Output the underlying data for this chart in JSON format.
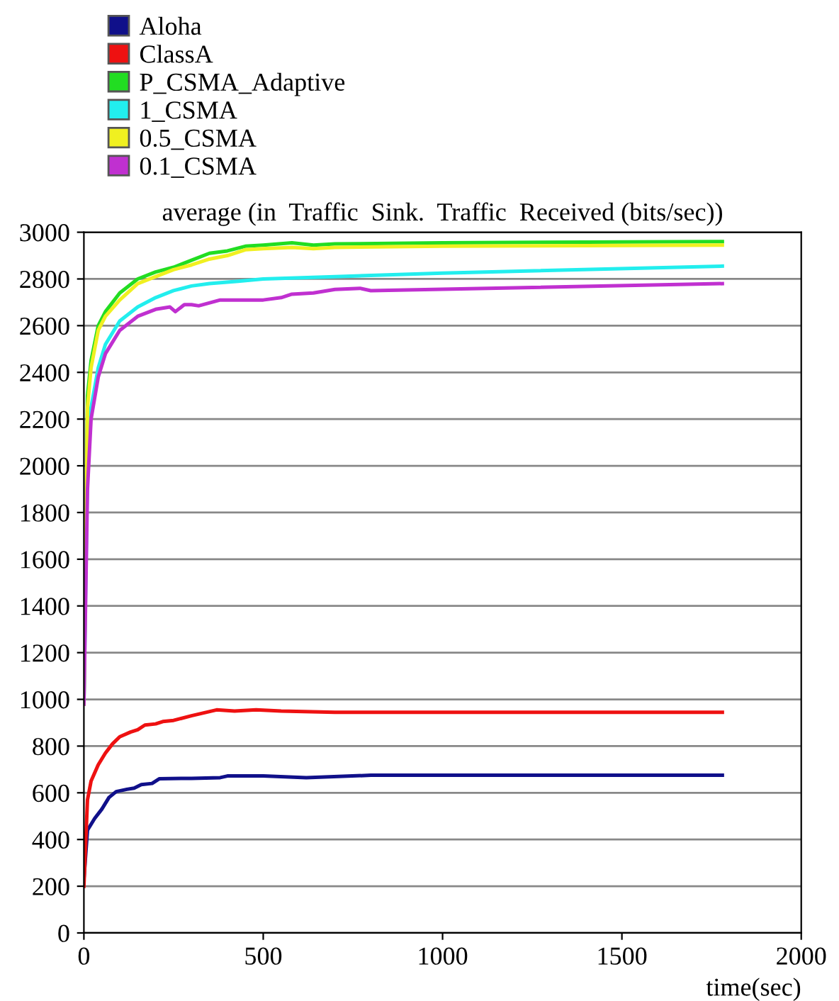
{
  "chart_data": {
    "type": "line",
    "title": "average (in  Traffic  Sink.  Traffic  Received (bits/sec))",
    "xlabel": "time(sec)",
    "xlim": [
      0,
      2000
    ],
    "xticks": [
      0,
      500,
      1000,
      1500,
      2000
    ],
    "ylim": [
      0,
      3000
    ],
    "yticks": [
      0,
      200,
      400,
      600,
      800,
      1000,
      1200,
      1400,
      1600,
      1800,
      2000,
      2200,
      2400,
      2600,
      2800,
      3000
    ],
    "grid": "y",
    "legend": "top left",
    "marker": "none",
    "line_style": "solid",
    "series": [
      {
        "name": "Aloha",
        "color": "#10108a",
        "x": [
          0,
          10,
          30,
          50,
          70,
          90,
          120,
          140,
          160,
          190,
          210,
          300,
          380,
          400,
          500,
          620,
          800,
          1780
        ],
        "values": [
          230,
          440,
          490,
          530,
          580,
          605,
          615,
          620,
          635,
          640,
          660,
          662,
          665,
          672,
          672,
          665,
          675,
          675
        ]
      },
      {
        "name": "ClassA",
        "color": "#ee1111",
        "x": [
          0,
          10,
          20,
          40,
          60,
          80,
          100,
          130,
          150,
          170,
          200,
          220,
          250,
          300,
          370,
          420,
          480,
          550,
          700,
          900,
          1780
        ],
        "values": [
          200,
          570,
          650,
          720,
          770,
          810,
          840,
          860,
          870,
          890,
          895,
          905,
          910,
          930,
          955,
          950,
          955,
          950,
          945,
          945,
          945
        ]
      },
      {
        "name": "P_CSMA_Adaptive",
        "color": "#22dd22",
        "x": [
          0,
          10,
          20,
          40,
          60,
          100,
          150,
          200,
          250,
          300,
          350,
          400,
          450,
          500,
          580,
          640,
          700,
          1000,
          1780
        ],
        "values": [
          980,
          2300,
          2450,
          2600,
          2660,
          2740,
          2800,
          2830,
          2850,
          2880,
          2910,
          2920,
          2940,
          2945,
          2955,
          2945,
          2950,
          2955,
          2960
        ]
      },
      {
        "name": "1_CSMA",
        "color": "#22eeee",
        "x": [
          0,
          10,
          20,
          40,
          60,
          100,
          150,
          200,
          250,
          300,
          350,
          430,
          500,
          700,
          1000,
          1780
        ],
        "values": [
          980,
          2000,
          2250,
          2420,
          2520,
          2620,
          2680,
          2720,
          2750,
          2770,
          2780,
          2790,
          2800,
          2810,
          2825,
          2855
        ]
      },
      {
        "name": "0.5_CSMA",
        "color": "#f0f020",
        "x": [
          0,
          10,
          20,
          40,
          60,
          100,
          150,
          200,
          250,
          300,
          350,
          400,
          450,
          500,
          580,
          640,
          700,
          1000,
          1780
        ],
        "values": [
          980,
          2250,
          2420,
          2580,
          2640,
          2710,
          2780,
          2810,
          2840,
          2860,
          2885,
          2900,
          2925,
          2930,
          2935,
          2930,
          2935,
          2940,
          2945
        ]
      },
      {
        "name": "0.1_CSMA",
        "color": "#c030d0",
        "x": [
          0,
          10,
          20,
          40,
          60,
          100,
          150,
          200,
          240,
          255,
          280,
          300,
          320,
          380,
          500,
          550,
          580,
          640,
          700,
          770,
          800,
          1780
        ],
        "values": [
          980,
          1900,
          2200,
          2380,
          2480,
          2580,
          2640,
          2670,
          2680,
          2660,
          2690,
          2690,
          2685,
          2710,
          2710,
          2720,
          2735,
          2740,
          2755,
          2760,
          2750,
          2780
        ]
      }
    ]
  }
}
